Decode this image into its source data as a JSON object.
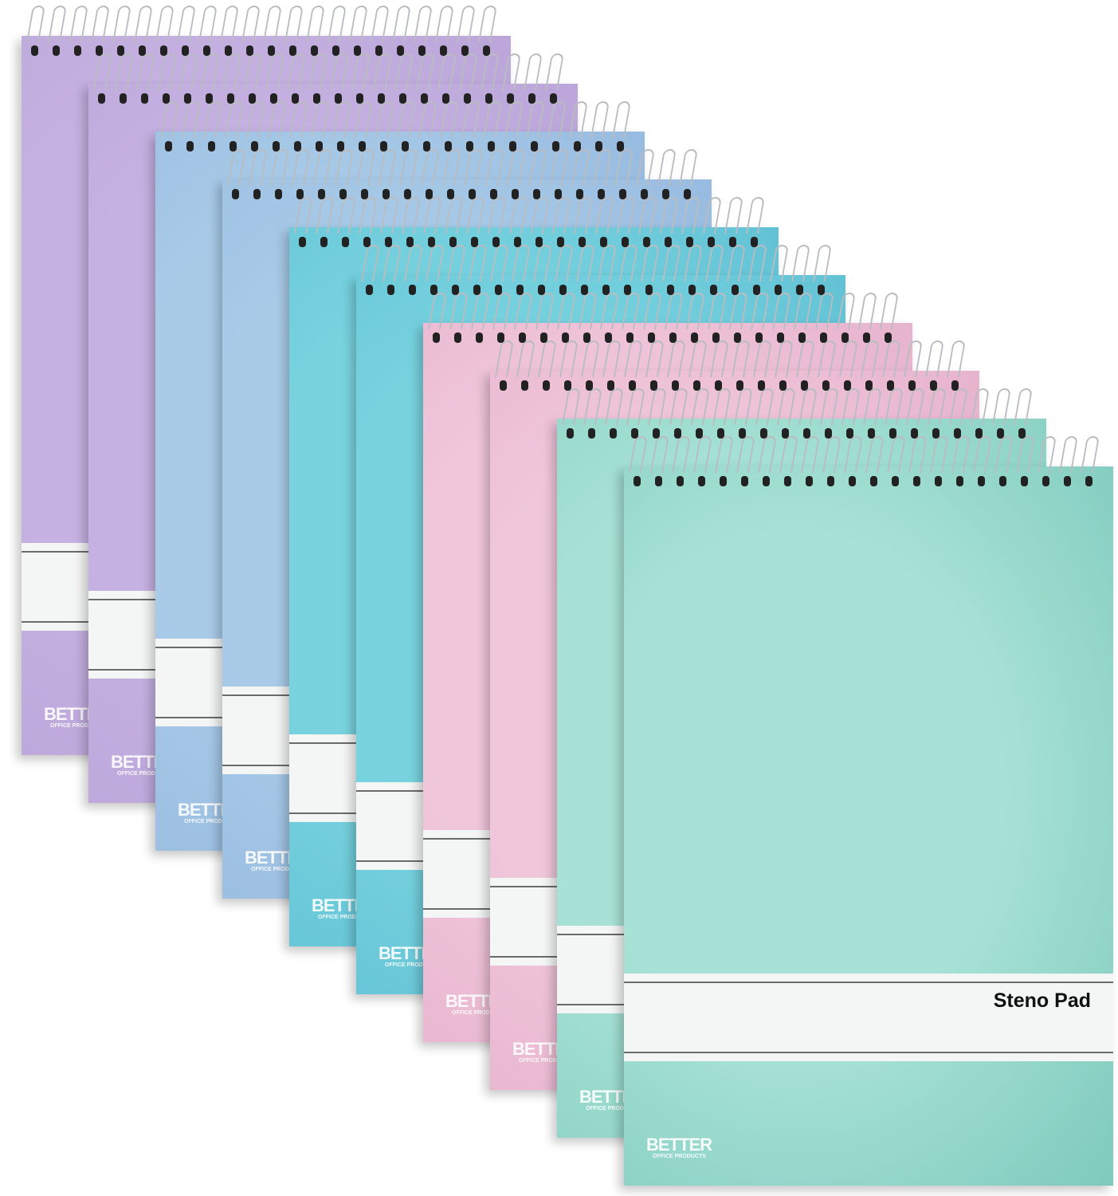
{
  "product": {
    "label": "Steno Pad",
    "logo_main": "BETTER",
    "logo_sub": "OFFICE PRODUCTS"
  },
  "pads": [
    {
      "color": "#c6b2e2",
      "color_dark": "#b9a3d8"
    },
    {
      "color": "#c6b2e2",
      "color_dark": "#b9a3d8"
    },
    {
      "color": "#a9cbe8",
      "color_dark": "#94b8df"
    },
    {
      "color": "#a9cbe8",
      "color_dark": "#94b8df"
    },
    {
      "color": "#78d3df",
      "color_dark": "#5ebfd3"
    },
    {
      "color": "#78d3df",
      "color_dark": "#5ebfd3"
    },
    {
      "color": "#f0c6da",
      "color_dark": "#e5b0cb"
    },
    {
      "color": "#f0c6da",
      "color_dark": "#e5b0cb"
    },
    {
      "color": "#a8e2d6",
      "color_dark": "#86cfc2"
    },
    {
      "color": "#a8e2d6",
      "color_dark": "#7ecabd"
    }
  ]
}
